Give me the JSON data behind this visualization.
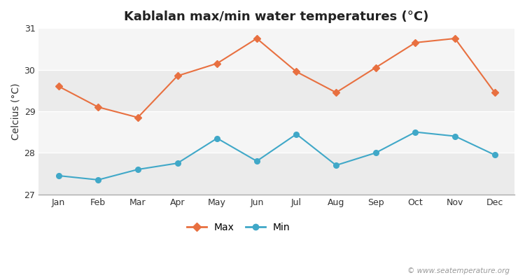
{
  "title": "Kablalan max/min water temperatures (°C)",
  "ylabel": "Celcius (°C)",
  "months": [
    "Jan",
    "Feb",
    "Mar",
    "Apr",
    "May",
    "Jun",
    "Jul",
    "Aug",
    "Sep",
    "Oct",
    "Nov",
    "Dec"
  ],
  "max_temps": [
    29.6,
    29.1,
    28.85,
    29.85,
    30.15,
    30.75,
    29.95,
    29.45,
    30.05,
    30.65,
    30.75,
    29.45
  ],
  "min_temps": [
    27.45,
    27.35,
    27.6,
    27.75,
    28.35,
    27.8,
    28.45,
    27.7,
    28.0,
    28.5,
    28.4,
    27.95
  ],
  "max_color": "#e87040",
  "min_color": "#40a8c8",
  "fig_bg_color": "#ffffff",
  "band_colors": [
    "#ebebeb",
    "#f5f5f5"
  ],
  "ylim": [
    27.0,
    31.0
  ],
  "yticks": [
    27,
    28,
    29,
    30,
    31
  ],
  "legend_labels": [
    "Max",
    "Min"
  ],
  "watermark": "© www.seatemperature.org",
  "title_fontsize": 13,
  "axis_fontsize": 10,
  "tick_fontsize": 9,
  "watermark_fontsize": 7.5
}
